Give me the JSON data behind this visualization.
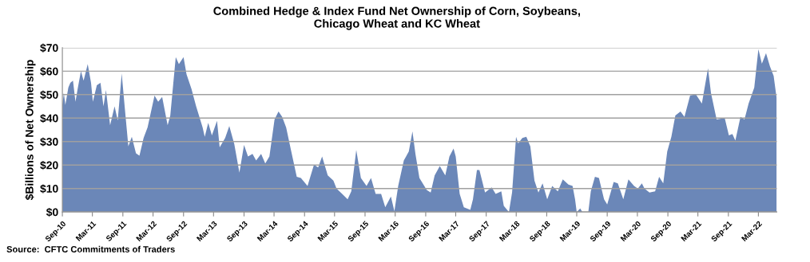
{
  "chart_data": {
    "type": "area",
    "title": "Combined Hedge & Index Fund Net Ownership of Corn, Soybeans,\nChicago Wheat and KC Wheat",
    "ylabel": "$Billions of Net Ownership",
    "annotations": [
      "Source:  CFTC Commitments of Traders"
    ],
    "x": [
      "2010-09-01",
      "2010-09-10",
      "2010-09-19",
      "2010-10-07",
      "2010-10-19",
      "2010-11-04",
      "2010-11-19",
      "2010-12-01",
      "2010-12-22",
      "2011-01-07",
      "2011-02-01",
      "2011-02-21",
      "2011-03-04",
      "2011-03-28",
      "2011-04-19",
      "2011-05-07",
      "2011-05-22",
      "2011-06-16",
      "2011-07-13",
      "2011-08-01",
      "2011-08-25",
      "2011-09-13",
      "2011-10-04",
      "2011-10-25",
      "2011-11-19",
      "2011-12-10",
      "2012-01-04",
      "2012-01-28",
      "2012-03-10",
      "2012-04-01",
      "2012-04-25",
      "2012-05-28",
      "2012-06-13",
      "2012-07-16",
      "2012-08-04",
      "2012-09-01",
      "2012-09-19",
      "2012-10-19",
      "2012-11-16",
      "2012-12-25",
      "2013-01-07",
      "2013-01-28",
      "2013-02-19",
      "2013-03-22",
      "2013-04-07",
      "2013-05-10",
      "2013-06-04",
      "2013-07-04",
      "2013-08-04",
      "2013-09-01",
      "2013-09-25",
      "2013-10-22",
      "2013-11-13",
      "2013-12-13",
      "2014-01-07",
      "2014-02-01",
      "2014-03-04",
      "2014-03-28",
      "2014-04-19",
      "2014-05-13",
      "2014-06-13",
      "2014-07-16",
      "2014-08-10",
      "2014-09-19",
      "2014-10-28",
      "2014-11-22",
      "2014-12-16",
      "2015-01-19",
      "2015-02-22",
      "2015-03-13",
      "2015-04-16",
      "2015-05-19",
      "2015-06-10",
      "2015-07-10",
      "2015-08-07",
      "2015-09-10",
      "2015-10-07",
      "2015-11-04",
      "2015-12-07",
      "2016-01-01",
      "2016-02-04",
      "2016-02-25",
      "2016-03-19",
      "2016-04-22",
      "2016-05-22",
      "2016-06-13",
      "2016-07-01",
      "2016-07-25",
      "2016-09-07",
      "2016-10-01",
      "2016-10-25",
      "2016-11-25",
      "2016-12-28",
      "2017-01-22",
      "2017-02-16",
      "2017-03-01",
      "2017-03-25",
      "2017-04-19",
      "2017-05-28",
      "2017-06-13",
      "2017-07-07",
      "2017-07-22",
      "2017-08-25",
      "2017-10-04",
      "2017-10-28",
      "2017-12-01",
      "2017-12-16",
      "2018-01-16",
      "2018-02-04",
      "2018-02-28",
      "2018-03-13",
      "2018-04-07",
      "2018-05-01",
      "2018-05-25",
      "2018-06-19",
      "2018-07-13",
      "2018-08-07",
      "2018-09-04",
      "2018-10-04",
      "2018-11-07",
      "2018-12-07",
      "2019-01-10",
      "2019-02-04",
      "2019-02-19",
      "2019-03-01",
      "2019-03-22",
      "2019-04-04",
      "2019-05-10",
      "2019-05-25",
      "2019-06-19",
      "2019-07-13",
      "2019-08-13",
      "2019-09-01",
      "2019-10-10",
      "2019-11-04",
      "2019-12-07",
      "2020-01-07",
      "2020-02-10",
      "2020-03-04",
      "2020-03-28",
      "2020-04-13",
      "2020-05-13",
      "2020-06-16",
      "2020-07-10",
      "2020-08-04",
      "2020-08-28",
      "2020-09-22",
      "2020-10-16",
      "2020-11-16",
      "2020-12-10",
      "2021-01-13",
      "2021-02-16",
      "2021-03-25",
      "2021-05-01",
      "2021-05-19",
      "2021-06-22",
      "2021-08-10",
      "2021-09-04",
      "2021-09-25",
      "2021-10-13",
      "2021-11-13",
      "2021-12-07",
      "2022-01-01",
      "2022-02-04",
      "2022-03-01",
      "2022-03-22",
      "2022-04-16",
      "2022-05-10",
      "2022-06-01",
      "2022-06-19"
    ],
    "series": [
      {
        "color": "#6b87b8",
        "values": [
          45.6,
          50.7,
          45.6,
          53,
          55,
          56,
          47,
          52,
          60,
          56,
          63,
          55,
          47,
          54,
          55,
          45,
          52,
          37,
          45,
          39,
          59,
          44,
          28,
          32,
          25,
          24,
          31.5,
          36,
          49.6,
          47,
          49,
          37,
          41,
          66,
          63,
          66,
          58.7,
          52.4,
          45,
          36,
          32,
          38,
          32.6,
          38.8,
          27.5,
          31.5,
          36.6,
          29,
          16.8,
          28.6,
          23.6,
          24.7,
          21.9,
          24.7,
          20.7,
          23.6,
          39.4,
          42.8,
          40.5,
          36,
          25.8,
          15,
          14.5,
          11.1,
          20.2,
          19,
          23.6,
          15.6,
          13.4,
          10,
          7.7,
          5.4,
          8.8,
          26.4,
          14.5,
          11.1,
          14.5,
          7.7,
          7.7,
          2,
          6.6,
          0.3,
          11.1,
          21.9,
          25.8,
          34.3,
          24.7,
          14.5,
          9.4,
          8.3,
          15.6,
          19.6,
          15.6,
          23.6,
          27,
          23.6,
          7.7,
          2,
          0.9,
          5.4,
          17.9,
          17.9,
          8.3,
          10.5,
          7.7,
          8.8,
          2.6,
          0,
          8.3,
          32,
          29.2,
          31.5,
          32,
          28,
          13.4,
          8.3,
          12.2,
          5.4,
          11.1,
          8.8,
          13.9,
          11.7,
          11.1,
          5.4,
          0,
          1.5,
          0,
          0,
          8.8,
          15,
          14.5,
          5.4,
          3.2,
          12.8,
          12.2,
          5.4,
          13.9,
          11.1,
          10,
          12.2,
          10,
          8.3,
          8.8,
          15,
          12.2,
          25.8,
          32,
          41.1,
          42.8,
          40.5,
          49.6,
          50.2,
          46.2,
          61.2,
          50.7,
          39.4,
          40,
          32.6,
          33.2,
          30.4,
          40.5,
          39.4,
          46.2,
          53,
          69.4,
          63.2,
          67.7,
          62,
          58,
          48.5
        ]
      }
    ],
    "xlim": [
      "2010-09-01",
      "2022-06-20"
    ],
    "xticks": [
      {
        "value": "2010-09-01",
        "label": "Sep-10"
      },
      {
        "value": "2011-03-01",
        "label": "Mar-11"
      },
      {
        "value": "2011-09-01",
        "label": "Sep-11"
      },
      {
        "value": "2012-03-01",
        "label": "Mar-12"
      },
      {
        "value": "2012-09-01",
        "label": "Sep-12"
      },
      {
        "value": "2013-03-01",
        "label": "Mar-13"
      },
      {
        "value": "2013-09-01",
        "label": "Sep-13"
      },
      {
        "value": "2014-03-01",
        "label": "Mar-14"
      },
      {
        "value": "2014-09-01",
        "label": "Sep-14"
      },
      {
        "value": "2015-03-01",
        "label": "Mar-15"
      },
      {
        "value": "2015-09-01",
        "label": "Sep-15"
      },
      {
        "value": "2016-03-01",
        "label": "Mar-16"
      },
      {
        "value": "2016-09-01",
        "label": "Sep-16"
      },
      {
        "value": "2017-03-01",
        "label": "Mar-17"
      },
      {
        "value": "2017-09-01",
        "label": "Sep-17"
      },
      {
        "value": "2018-03-01",
        "label": "Mar-18"
      },
      {
        "value": "2018-09-01",
        "label": "Sep-18"
      },
      {
        "value": "2019-03-01",
        "label": "Mar-19"
      },
      {
        "value": "2019-09-01",
        "label": "Sep-19"
      },
      {
        "value": "2020-03-01",
        "label": "Mar-20"
      },
      {
        "value": "2020-09-01",
        "label": "Sep-20"
      },
      {
        "value": "2021-03-01",
        "label": "Mar-21"
      },
      {
        "value": "2021-09-01",
        "label": "Sep-21"
      },
      {
        "value": "2022-03-01",
        "label": "Mar-22"
      }
    ],
    "ylim": [
      0,
      70
    ],
    "yticks": [
      {
        "value": 0,
        "label": "$0"
      },
      {
        "value": 10,
        "label": "$10"
      },
      {
        "value": 20,
        "label": "$20"
      },
      {
        "value": 30,
        "label": "$30"
      },
      {
        "value": 40,
        "label": "$40"
      },
      {
        "value": 50,
        "label": "$50"
      },
      {
        "value": 60,
        "label": "$60"
      },
      {
        "value": 70,
        "label": "$70"
      }
    ],
    "grid": "y",
    "legend": false
  }
}
